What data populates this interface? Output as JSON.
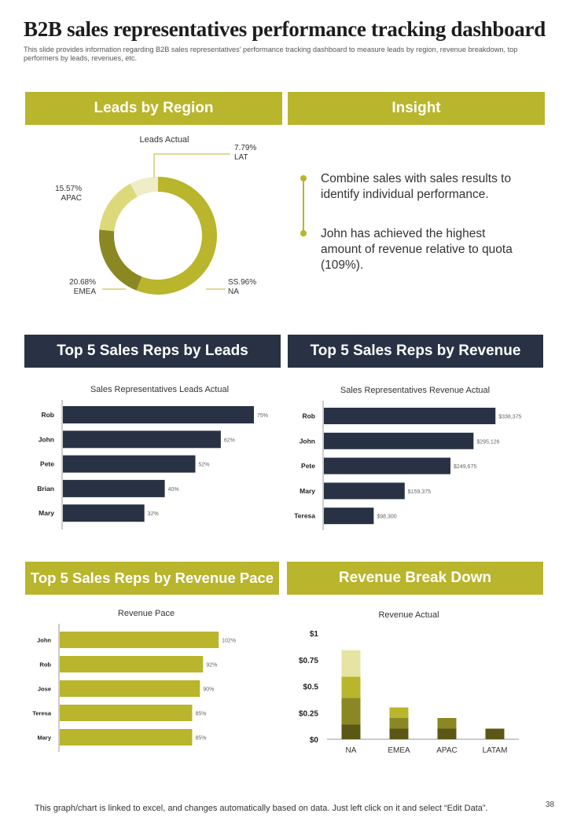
{
  "page": {
    "title": "B2B sales representatives performance tracking dashboard",
    "subtitle": "This slide provides information regarding B2B sales representatives' performance tracking dashboard to measure leads by region, revenue breakdown, top performers by leads, revenues, etc.",
    "footer": "This graph/chart is linked to excel, and changes automatically based on data. Just left click on it and select “Edit Data”.",
    "page_number": "38"
  },
  "sections": {
    "leads_by_region": "Leads by Region",
    "insight": "Insight",
    "top_leads": "Top 5 Sales Reps by Leads",
    "top_revenue": "Top 5 Sales Reps by Revenue",
    "revenue_pace": "Top 5 Sales Reps by Revenue Pace",
    "revenue_breakdown": "Revenue Break Down"
  },
  "insight": {
    "items": [
      "Combine sales with sales results to identify individual performance.",
      "John has achieved the highest amount of revenue relative to quota (109%)."
    ]
  },
  "colors": {
    "olive": "#b9b52c",
    "navy": "#283244",
    "donut_na": "#b9b52c",
    "donut_emea": "#8b8722",
    "donut_apac": "#dcd97a",
    "donut_lat": "#efedc6",
    "stack_1": "#5b5816",
    "stack_2": "#8b8722",
    "stack_3": "#b9b52c",
    "stack_4": "#e6e4a3"
  },
  "chart_data": [
    {
      "id": "leads_region",
      "type": "pie",
      "title": "Leads Actual",
      "slices": [
        {
          "label": "NA",
          "value": 55.96,
          "value_label": "SS.96%"
        },
        {
          "label": "EMEA",
          "value": 20.68,
          "value_label": "20.68%"
        },
        {
          "label": "APAC",
          "value": 15.57,
          "value_label": "15.57%"
        },
        {
          "label": "LAT",
          "value": 7.79,
          "value_label": "7.79%"
        }
      ]
    },
    {
      "id": "reps_leads",
      "type": "bar",
      "orientation": "horizontal",
      "title": "Sales Representatives Leads Actual",
      "categories": [
        "Rob",
        "John",
        "Pete",
        "Brian",
        "Mary"
      ],
      "values": [
        75,
        62,
        52,
        40,
        32
      ],
      "value_labels": [
        "75%",
        "62%",
        "52%",
        "40%",
        "32%"
      ],
      "xlim": [
        0,
        100
      ]
    },
    {
      "id": "reps_revenue",
      "type": "bar",
      "orientation": "horizontal",
      "title": "Sales Representatives Revenue Actual",
      "categories": [
        "Rob",
        "John",
        "Pete",
        "Mary",
        "Teresa"
      ],
      "values": [
        338375,
        295126,
        249675,
        159375,
        98300
      ],
      "value_labels": [
        "$338,375",
        "$295,126",
        "$249,675",
        "$159,375",
        "$98,300"
      ],
      "xlim": [
        0,
        400000
      ]
    },
    {
      "id": "revenue_pace",
      "type": "bar",
      "orientation": "horizontal",
      "title": "Revenue Pace",
      "categories": [
        "John",
        "Rob",
        "Jose",
        "Teresa",
        "Mary"
      ],
      "values": [
        102,
        92,
        90,
        85,
        85
      ],
      "value_labels": [
        "102%",
        "92%",
        "90%",
        "85%",
        "85%"
      ],
      "xlim": [
        0,
        110
      ]
    },
    {
      "id": "revenue_breakdown",
      "type": "bar",
      "stacked": true,
      "title": "Revenue Actual",
      "categories": [
        "NA",
        "EMEA",
        "APAC",
        "LATAM"
      ],
      "y_ticks": [
        "$0",
        "$0.25",
        "$0.5",
        "$0.75",
        "$1"
      ],
      "ylim": [
        0,
        1
      ],
      "series": [
        {
          "values": [
            0.14,
            0.1,
            0.1,
            0.1
          ]
        },
        {
          "values": [
            0.25,
            0.1,
            0.1,
            0
          ]
        },
        {
          "values": [
            0.2,
            0.1,
            0,
            0
          ]
        },
        {
          "values": [
            0.25,
            0,
            0,
            0
          ]
        }
      ]
    }
  ]
}
